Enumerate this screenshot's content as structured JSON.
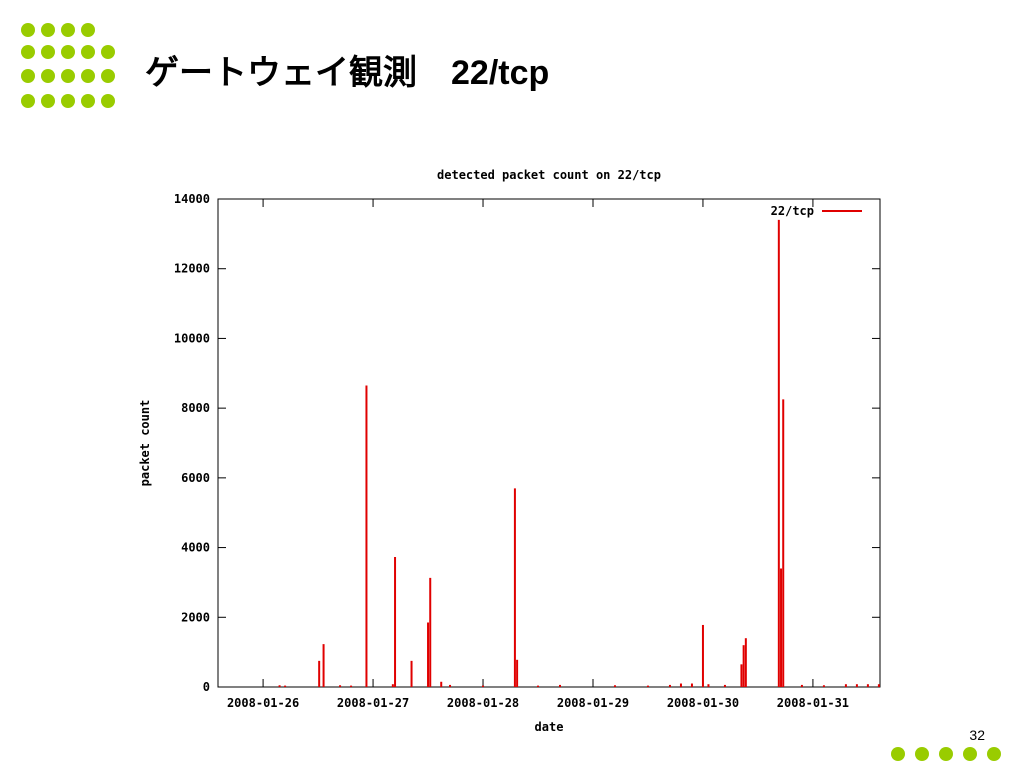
{
  "slide": {
    "title": "ゲートウェイ観測　22/tcp",
    "page_number": "32"
  },
  "chart_data": {
    "type": "impulses",
    "title": "detected packet count on 22/tcp",
    "x_label": "date",
    "y_label": "packet count",
    "legend_position": "top-right",
    "grid": false,
    "xlim": [
      25.59,
      31.61
    ],
    "xticks": [
      {
        "value": 26,
        "label": "2008-01-26"
      },
      {
        "value": 27,
        "label": "2008-01-27"
      },
      {
        "value": 28,
        "label": "2008-01-28"
      },
      {
        "value": 29,
        "label": "2008-01-29"
      },
      {
        "value": 30,
        "label": "2008-01-30"
      },
      {
        "value": 31,
        "label": "2008-01-31"
      }
    ],
    "ylim": [
      0,
      14000
    ],
    "yticks": [
      0,
      2000,
      4000,
      6000,
      8000,
      10000,
      12000,
      14000
    ],
    "series": [
      {
        "name": "22/tcp",
        "color": "#e00000",
        "x": [
          26.15,
          26.2,
          26.51,
          26.55,
          26.7,
          26.8,
          26.94,
          27.18,
          27.2,
          27.35,
          27.5,
          27.52,
          27.62,
          27.7,
          28.0,
          28.29,
          28.31,
          28.5,
          28.7,
          29.2,
          29.5,
          29.7,
          29.8,
          29.9,
          30.0,
          30.05,
          30.2,
          30.35,
          30.37,
          30.39,
          30.69,
          30.71,
          30.73,
          30.9,
          31.1,
          31.3,
          31.4,
          31.5,
          31.6
        ],
        "values": [
          50,
          40,
          750,
          1230,
          50,
          40,
          8650,
          80,
          3730,
          750,
          1850,
          3130,
          150,
          60,
          40,
          5700,
          780,
          40,
          60,
          50,
          40,
          60,
          100,
          100,
          1780,
          80,
          60,
          650,
          1200,
          1400,
          13400,
          3400,
          8250,
          60,
          50,
          80,
          80,
          80,
          80
        ]
      }
    ]
  }
}
